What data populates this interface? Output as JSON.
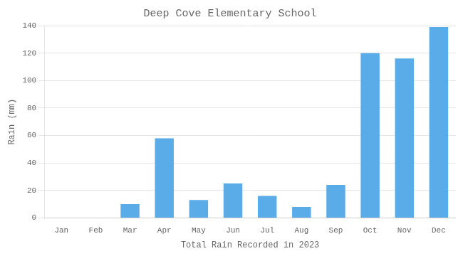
{
  "chart_data": {
    "type": "bar",
    "title": "Deep Cove Elementary School",
    "xlabel": "Total Rain Recorded in 2023",
    "ylabel": "Rain (mm)",
    "categories": [
      "Jan",
      "Feb",
      "Mar",
      "Apr",
      "May",
      "Jun",
      "Jul",
      "Aug",
      "Sep",
      "Oct",
      "Nov",
      "Dec"
    ],
    "values": [
      0,
      0,
      10,
      58,
      13,
      25,
      16,
      8,
      24,
      120,
      116,
      139
    ],
    "color": "#5aace8",
    "ylim": [
      0,
      140
    ],
    "yticks": [
      0,
      20,
      40,
      60,
      80,
      100,
      120,
      140
    ],
    "grid": true
  }
}
